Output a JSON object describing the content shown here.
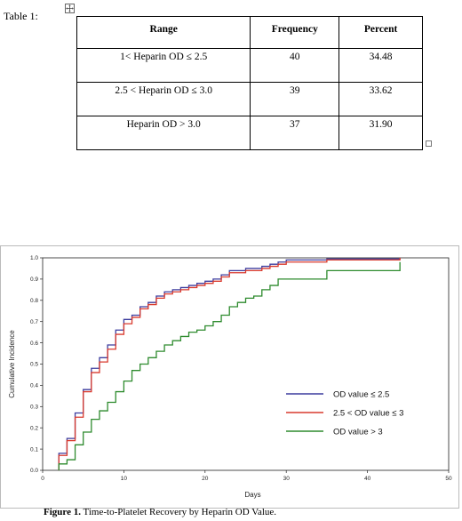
{
  "table": {
    "label": "Table 1:",
    "headers": [
      "Range",
      "Frequency",
      "Percent"
    ],
    "rows": [
      [
        "1< Heparin OD ≤ 2.5",
        "40",
        "34.48"
      ],
      [
        "2.5 < Heparin OD ≤ 3.0",
        "39",
        "33.62"
      ],
      [
        "Heparin OD > 3.0",
        "37",
        "31.90"
      ]
    ]
  },
  "figure": {
    "caption_label": "Figure 1.",
    "caption_text": "Time-to-Platelet Recovery by Heparin OD Value."
  },
  "chart_data": {
    "type": "line",
    "step": true,
    "xlabel": "Days",
    "ylabel": "Cumulative Incidence",
    "xlim": [
      0,
      50
    ],
    "ylim": [
      0,
      1.0
    ],
    "xticks": [
      0,
      10,
      20,
      30,
      40,
      50
    ],
    "yticks": [
      0.0,
      0.1,
      0.2,
      0.3,
      0.4,
      0.5,
      0.6,
      0.7,
      0.8,
      0.9,
      1.0
    ],
    "ytick_labels": [
      "0.0",
      "0.1",
      "0.2",
      "0.3",
      "0.4",
      "0.5",
      "0.6",
      "0.7",
      "0.8",
      "0.9",
      "1.0"
    ],
    "grid": false,
    "legend_position": "bottom-right",
    "series": [
      {
        "name": "OD value ≤ 2.5",
        "color": "#3c3c9e",
        "x": [
          2,
          3,
          4,
          5,
          6,
          7,
          8,
          9,
          10,
          11,
          12,
          13,
          14,
          15,
          16,
          17,
          18,
          19,
          20,
          21,
          22,
          23,
          25,
          27,
          28,
          29,
          30,
          35,
          44
        ],
        "y": [
          0.08,
          0.15,
          0.27,
          0.38,
          0.48,
          0.53,
          0.59,
          0.66,
          0.71,
          0.73,
          0.77,
          0.79,
          0.82,
          0.84,
          0.85,
          0.86,
          0.87,
          0.88,
          0.89,
          0.9,
          0.92,
          0.94,
          0.95,
          0.96,
          0.97,
          0.98,
          0.99,
          0.995,
          1.0
        ]
      },
      {
        "name": "2.5 < OD value ≤ 3",
        "color": "#d93a2e",
        "x": [
          2,
          3,
          4,
          5,
          6,
          7,
          8,
          9,
          10,
          11,
          12,
          13,
          14,
          15,
          16,
          17,
          18,
          19,
          20,
          21,
          22,
          23,
          25,
          27,
          28,
          29,
          30,
          35,
          44
        ],
        "y": [
          0.07,
          0.14,
          0.25,
          0.37,
          0.46,
          0.51,
          0.57,
          0.64,
          0.69,
          0.72,
          0.76,
          0.78,
          0.81,
          0.83,
          0.84,
          0.85,
          0.86,
          0.87,
          0.88,
          0.89,
          0.91,
          0.93,
          0.94,
          0.95,
          0.96,
          0.97,
          0.98,
          0.99,
          1.0
        ]
      },
      {
        "name": "OD value > 3",
        "color": "#2e8b2e",
        "x": [
          2,
          3,
          4,
          5,
          6,
          7,
          8,
          9,
          10,
          11,
          12,
          13,
          14,
          15,
          16,
          17,
          18,
          19,
          20,
          21,
          22,
          23,
          24,
          25,
          26,
          27,
          28,
          29,
          30,
          35,
          44
        ],
        "y": [
          0.03,
          0.05,
          0.12,
          0.18,
          0.24,
          0.28,
          0.32,
          0.37,
          0.42,
          0.47,
          0.5,
          0.53,
          0.56,
          0.59,
          0.61,
          0.63,
          0.65,
          0.66,
          0.68,
          0.7,
          0.73,
          0.77,
          0.79,
          0.81,
          0.82,
          0.85,
          0.87,
          0.9,
          0.9,
          0.94,
          0.98
        ]
      }
    ]
  }
}
